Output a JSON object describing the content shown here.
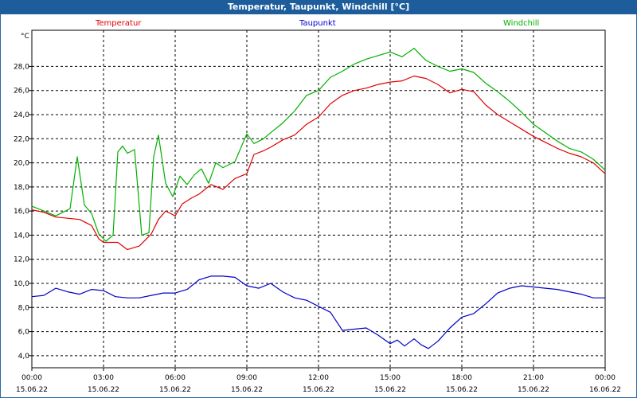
{
  "window": {
    "title": "Temperatur, Taupunkt, Windchill [°C]"
  },
  "chart_data": {
    "type": "line",
    "title": "Temperatur, Taupunkt, Windchill [°C]",
    "ylabel": "°C",
    "xlabel": "",
    "ylim": [
      3,
      31
    ],
    "xlim": [
      0,
      24
    ],
    "grid": true,
    "legend": "top",
    "y_ticks": [
      "4,0",
      "6,0",
      "8,0",
      "10,0",
      "12,0",
      "14,0",
      "16,0",
      "18,0",
      "20,0",
      "22,0",
      "24,0",
      "26,0",
      "28,0"
    ],
    "y_tick_values": [
      4,
      6,
      8,
      10,
      12,
      14,
      16,
      18,
      20,
      22,
      24,
      26,
      28
    ],
    "x_ticks": [
      {
        "time": "00:00",
        "date": "15.06.22",
        "hour": 0
      },
      {
        "time": "03:00",
        "date": "15.06.22",
        "hour": 3
      },
      {
        "time": "06:00",
        "date": "15.06.22",
        "hour": 6
      },
      {
        "time": "09:00",
        "date": "15.06.22",
        "hour": 9
      },
      {
        "time": "12:00",
        "date": "15.06.22",
        "hour": 12
      },
      {
        "time": "15:00",
        "date": "15.06.22",
        "hour": 15
      },
      {
        "time": "18:00",
        "date": "15.06.22",
        "hour": 18
      },
      {
        "time": "21:00",
        "date": "15.06.22",
        "hour": 21
      },
      {
        "time": "00:00",
        "date": "16.06.22",
        "hour": 24
      }
    ],
    "series": [
      {
        "name": "Temperatur",
        "color": "#e00000",
        "x": [
          0,
          0.5,
          1,
          1.5,
          2,
          2.5,
          2.8,
          3,
          3.3,
          3.6,
          4,
          4.5,
          5,
          5.3,
          5.6,
          6,
          6.3,
          6.7,
          7,
          7.5,
          8,
          8.5,
          9,
          9.3,
          9.7,
          10,
          10.5,
          11,
          11.5,
          12,
          12.5,
          13,
          13.5,
          14,
          14.5,
          15,
          15.5,
          16,
          16.5,
          17,
          17.5,
          18,
          18.5,
          19,
          19.5,
          20,
          20.5,
          21,
          21.5,
          22,
          22.5,
          23,
          23.5,
          24
        ],
        "values": [
          16.1,
          15.9,
          15.5,
          15.4,
          15.3,
          14.8,
          13.7,
          13.4,
          13.4,
          13.4,
          12.8,
          13.1,
          14.1,
          15.3,
          16.0,
          15.6,
          16.6,
          17.1,
          17.4,
          18.2,
          17.8,
          18.7,
          19.1,
          20.7,
          21.0,
          21.3,
          21.9,
          22.3,
          23.2,
          23.8,
          24.9,
          25.6,
          26.0,
          26.2,
          26.5,
          26.7,
          26.8,
          27.2,
          27.0,
          26.5,
          25.8,
          26.1,
          25.9,
          24.8,
          24.0,
          23.4,
          22.8,
          22.2,
          21.7,
          21.2,
          20.8,
          20.5,
          20.0,
          19.1
        ]
      },
      {
        "name": "Taupunkt",
        "color": "#0000c8",
        "x": [
          0,
          0.5,
          1,
          1.5,
          2,
          2.5,
          3,
          3.5,
          4,
          4.5,
          5,
          5.5,
          6,
          6.5,
          7,
          7.5,
          8,
          8.5,
          9,
          9.5,
          10,
          10.5,
          11,
          11.5,
          12,
          12.5,
          13,
          13.5,
          14,
          14.5,
          15,
          15.3,
          15.6,
          16,
          16.3,
          16.6,
          17,
          17.5,
          18,
          18.5,
          19,
          19.5,
          20,
          20.5,
          21,
          21.5,
          22,
          22.5,
          23,
          23.5,
          24
        ],
        "values": [
          8.9,
          9.0,
          9.6,
          9.3,
          9.1,
          9.5,
          9.4,
          8.9,
          8.8,
          8.8,
          9.0,
          9.2,
          9.2,
          9.5,
          10.3,
          10.6,
          10.6,
          10.5,
          9.8,
          9.6,
          10.0,
          9.3,
          8.8,
          8.6,
          8.1,
          7.6,
          6.1,
          6.2,
          6.3,
          5.7,
          5.0,
          5.3,
          4.8,
          5.4,
          4.9,
          4.6,
          5.2,
          6.3,
          7.2,
          7.5,
          8.3,
          9.2,
          9.6,
          9.8,
          9.7,
          9.6,
          9.5,
          9.3,
          9.1,
          8.8,
          8.8
        ]
      },
      {
        "name": "Windchill",
        "color": "#00b000",
        "x": [
          0,
          0.5,
          1,
          1.3,
          1.6,
          1.9,
          2.2,
          2.5,
          2.8,
          3.1,
          3.4,
          3.6,
          3.8,
          4.0,
          4.3,
          4.6,
          4.9,
          5.1,
          5.3,
          5.6,
          5.9,
          6.2,
          6.5,
          6.8,
          7.1,
          7.4,
          7.7,
          8,
          8.5,
          9,
          9.3,
          9.7,
          10,
          10.5,
          11,
          11.5,
          12,
          12.5,
          13,
          13.5,
          14,
          14.5,
          15,
          15.5,
          16,
          16.5,
          17,
          17.5,
          18,
          18.5,
          19,
          19.5,
          20,
          20.5,
          21,
          21.5,
          22,
          22.5,
          23,
          23.5,
          24
        ],
        "values": [
          16.4,
          16.0,
          15.6,
          15.9,
          16.2,
          20.5,
          16.5,
          15.8,
          14.1,
          13.5,
          14.0,
          20.9,
          21.4,
          20.8,
          21.1,
          14.0,
          14.2,
          20.5,
          22.3,
          18.3,
          17.2,
          18.9,
          18.2,
          19.0,
          19.5,
          18.3,
          20.0,
          19.6,
          20.1,
          22.4,
          21.6,
          22.0,
          22.5,
          23.3,
          24.3,
          25.6,
          26.0,
          27.1,
          27.6,
          28.2,
          28.6,
          28.9,
          29.2,
          28.8,
          29.5,
          28.5,
          28.0,
          27.6,
          27.8,
          27.5,
          26.6,
          25.9,
          25.1,
          24.2,
          23.2,
          22.5,
          21.8,
          21.2,
          20.9,
          20.3,
          19.4
        ]
      }
    ]
  }
}
